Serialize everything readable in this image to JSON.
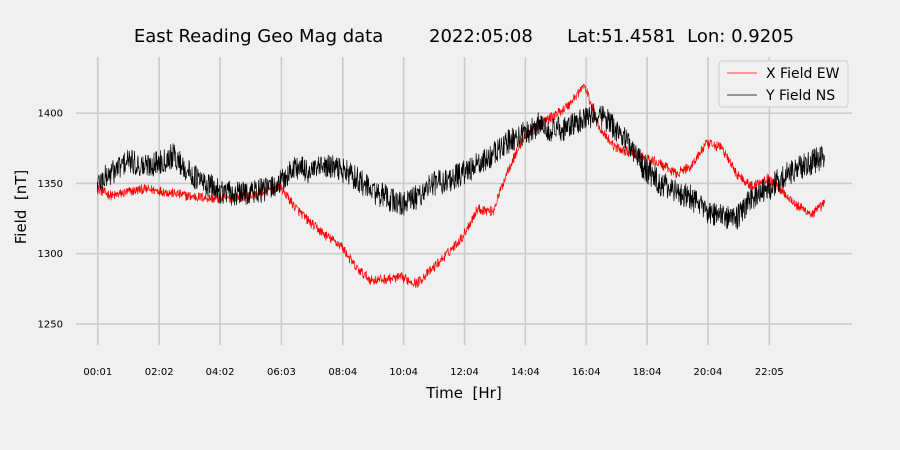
{
  "title": "East Reading Geo Mag data        2022:05:08      Lat:51.4581  Lon: 0.9205",
  "chart_data": {
    "type": "line",
    "title": "East Reading Geo Mag data        2022:05:08      Lat:51.4581  Lon: 0.9205",
    "xlabel": "Time  [Hr]",
    "ylabel": "Field  [nT]",
    "x_tick_labels": [
      "00:01",
      "02:02",
      "04:02",
      "06:03",
      "08:04",
      "10:04",
      "12:04",
      "14:04",
      "16:04",
      "18:04",
      "20:04",
      "22:05"
    ],
    "y_ticks": [
      1250,
      1300,
      1350,
      1400
    ],
    "ylim": [
      1235,
      1440
    ],
    "xlim_hours": [
      -0.7,
      24.8
    ],
    "grid": true,
    "legend_position": "top-right",
    "x_hours": [
      0.0,
      0.5,
      1.0,
      1.5,
      2.0,
      2.5,
      3.0,
      3.5,
      4.0,
      4.5,
      5.0,
      5.5,
      6.0,
      6.5,
      7.0,
      7.5,
      8.0,
      8.5,
      9.0,
      9.5,
      10.0,
      10.5,
      11.0,
      11.5,
      12.0,
      12.5,
      13.0,
      13.5,
      14.0,
      14.5,
      15.0,
      15.5,
      16.0,
      16.5,
      17.0,
      17.5,
      18.0,
      18.5,
      19.0,
      19.5,
      20.0,
      20.5,
      21.0,
      21.5,
      22.0,
      22.5,
      23.0,
      23.5,
      23.9
    ],
    "series": [
      {
        "name": "X Field EW",
        "color": "#ff0000",
        "values": [
          1346,
          1341,
          1344,
          1346,
          1345,
          1343,
          1341,
          1340,
          1339,
          1340,
          1341,
          1344,
          1348,
          1333,
          1322,
          1313,
          1306,
          1290,
          1281,
          1282,
          1283,
          1279,
          1289,
          1300,
          1312,
          1332,
          1330,
          1360,
          1382,
          1392,
          1398,
          1406,
          1420,
          1390,
          1376,
          1372,
          1368,
          1364,
          1357,
          1362,
          1378,
          1376,
          1357,
          1348,
          1354,
          1345,
          1334,
          1328,
          1336
        ]
      },
      {
        "name": "Y Field NS",
        "color": "#000000",
        "values": [
          1350,
          1358,
          1366,
          1362,
          1365,
          1370,
          1358,
          1350,
          1345,
          1342,
          1344,
          1345,
          1350,
          1362,
          1358,
          1362,
          1360,
          1354,
          1345,
          1340,
          1335,
          1340,
          1350,
          1352,
          1357,
          1363,
          1370,
          1380,
          1385,
          1392,
          1388,
          1390,
          1395,
          1400,
          1390,
          1378,
          1360,
          1350,
          1345,
          1340,
          1330,
          1326,
          1325,
          1340,
          1345,
          1355,
          1360,
          1365,
          1370
        ]
      }
    ]
  }
}
